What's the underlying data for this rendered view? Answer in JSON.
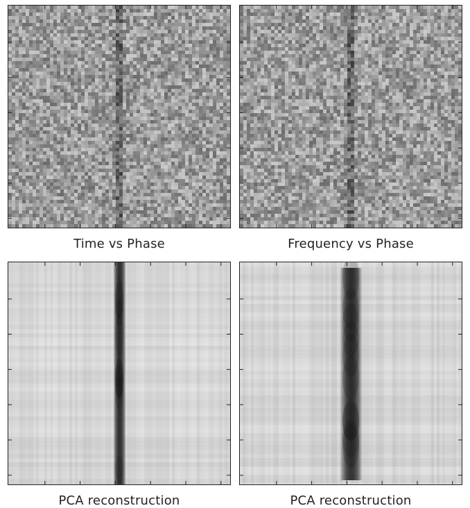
{
  "chart_data": [
    {
      "type": "heatmap",
      "title": "Time vs Phase",
      "colormap": "grayscale",
      "style": "noisy",
      "pulse_phase": 0.5
    },
    {
      "type": "heatmap",
      "title": "Frequency vs Phase",
      "colormap": "grayscale",
      "style": "noisy",
      "pulse_phase": 0.5
    },
    {
      "type": "heatmap",
      "title": "PCA reconstruction",
      "colormap": "grayscale",
      "style": "smooth",
      "pulse_phase": 0.5
    },
    {
      "type": "heatmap",
      "title": "PCA reconstruction",
      "colormap": "grayscale",
      "style": "smooth-wide",
      "pulse_phase": 0.5
    }
  ]
}
